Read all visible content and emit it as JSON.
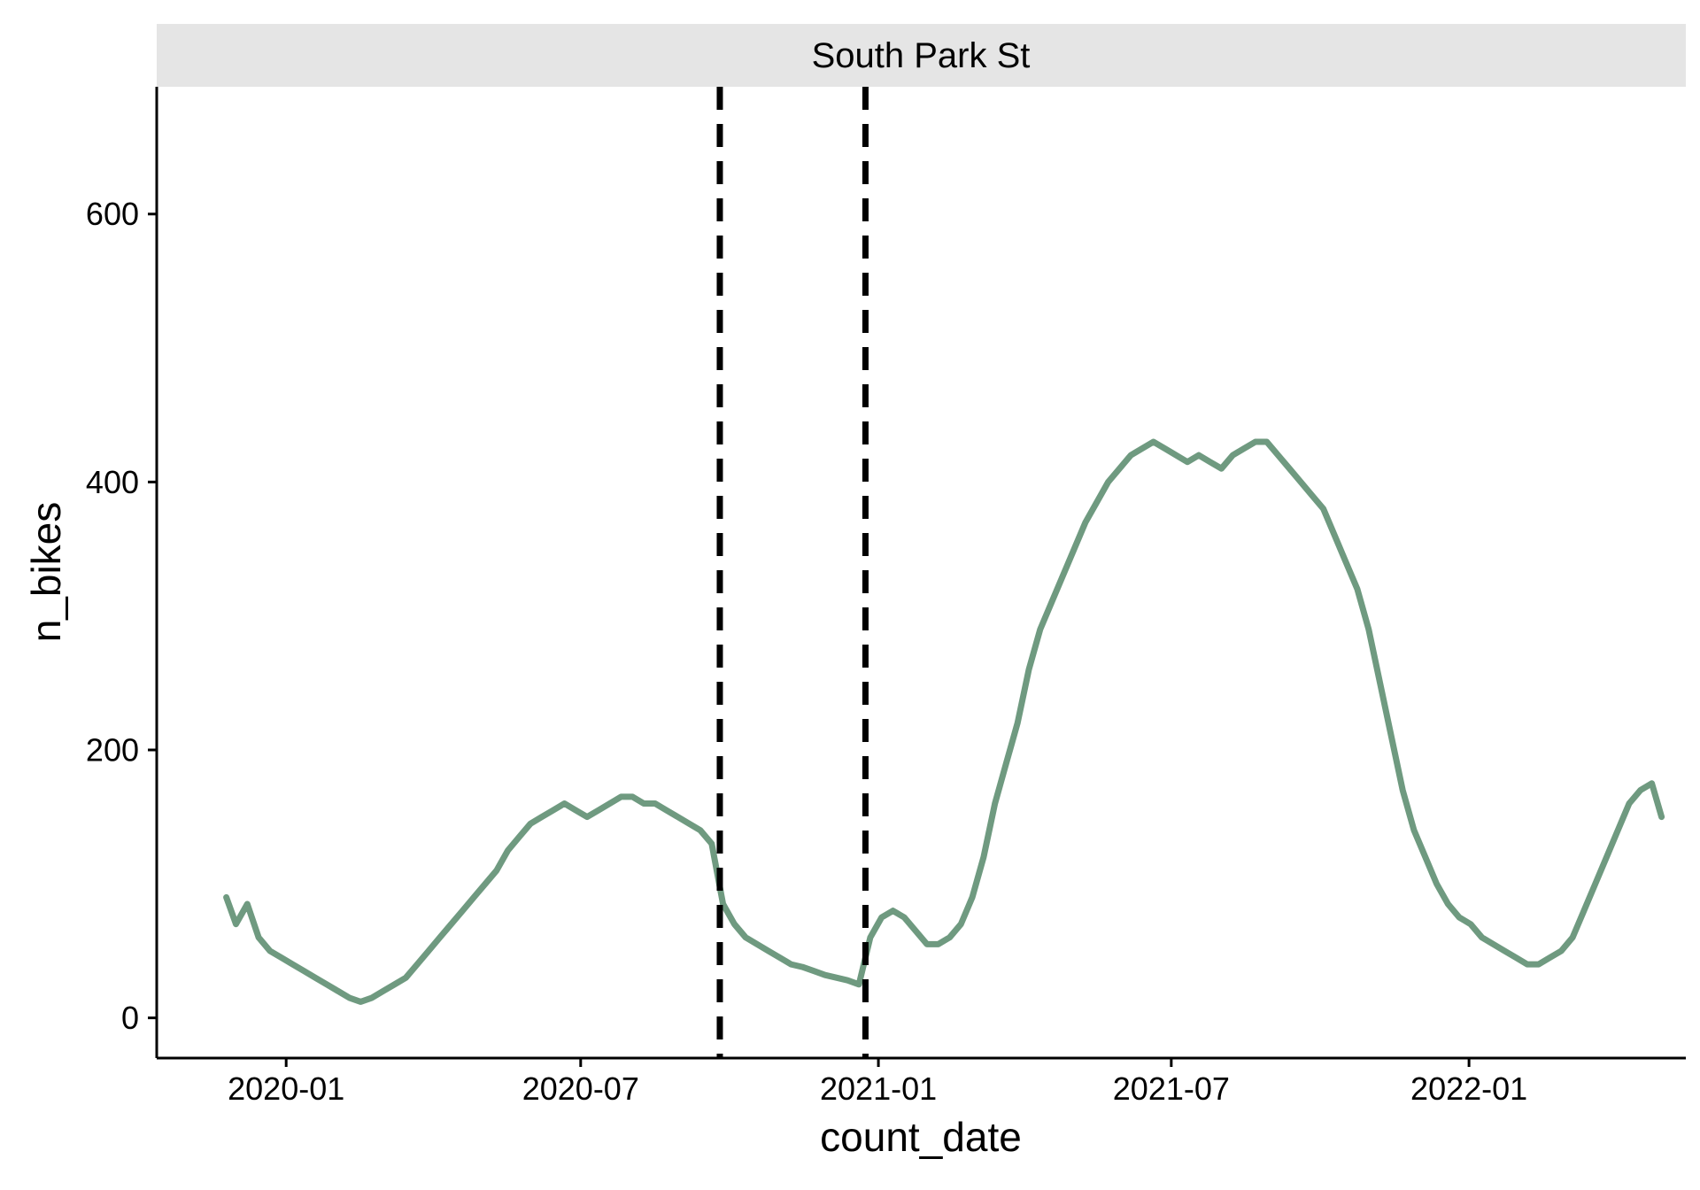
{
  "chart_data": {
    "type": "line",
    "facet": "South Park St",
    "xlabel": "count_date",
    "ylabel": "n_bikes",
    "x_ticks": [
      "2020-01",
      "2020-07",
      "2021-01",
      "2021-07",
      "2022-01"
    ],
    "y_ticks": [
      0,
      200,
      400,
      600
    ],
    "xlim": [
      "2019-10-13",
      "2022-05-15"
    ],
    "ylim": [
      -30,
      695
    ],
    "grid": false,
    "legend": "none",
    "line_color": "#6f9a80",
    "vlines": [
      "2020-09-25",
      "2020-12-24"
    ],
    "vline_style": "dashed",
    "vline_color": "#000000",
    "series": [
      {
        "x": [
          "2019-11-25",
          "2019-12-01",
          "2019-12-08",
          "2019-12-15",
          "2019-12-22",
          "2019-12-29",
          "2020-01-05",
          "2020-01-12",
          "2020-01-19",
          "2020-01-26",
          "2020-02-02",
          "2020-02-09",
          "2020-02-16",
          "2020-02-23",
          "2020-03-01",
          "2020-03-08",
          "2020-03-15",
          "2020-03-22",
          "2020-03-29",
          "2020-04-05",
          "2020-04-12",
          "2020-04-19",
          "2020-04-26",
          "2020-05-03",
          "2020-05-10",
          "2020-05-17",
          "2020-05-24",
          "2020-05-31",
          "2020-06-07",
          "2020-06-14",
          "2020-06-21",
          "2020-06-28",
          "2020-07-05",
          "2020-07-12",
          "2020-07-19",
          "2020-07-26",
          "2020-08-02",
          "2020-08-09",
          "2020-08-16",
          "2020-08-23",
          "2020-08-30",
          "2020-09-06",
          "2020-09-13",
          "2020-09-20",
          "2020-09-27",
          "2020-10-04",
          "2020-10-11",
          "2020-10-18",
          "2020-10-25",
          "2020-11-01",
          "2020-11-08",
          "2020-11-15",
          "2020-11-22",
          "2020-11-29",
          "2020-12-06",
          "2020-12-13",
          "2020-12-20",
          "2020-12-27",
          "2021-01-03",
          "2021-01-10",
          "2021-01-17",
          "2021-01-24",
          "2021-01-31",
          "2021-02-07",
          "2021-02-14",
          "2021-02-21",
          "2021-02-28",
          "2021-03-07",
          "2021-03-14",
          "2021-03-21",
          "2021-03-28",
          "2021-04-04",
          "2021-04-11",
          "2021-04-18",
          "2021-04-25",
          "2021-05-02",
          "2021-05-09",
          "2021-05-16",
          "2021-05-23",
          "2021-05-30",
          "2021-06-06",
          "2021-06-13",
          "2021-06-20",
          "2021-06-27",
          "2021-07-04",
          "2021-07-11",
          "2021-07-18",
          "2021-07-25",
          "2021-08-01",
          "2021-08-08",
          "2021-08-15",
          "2021-08-22",
          "2021-08-29",
          "2021-09-05",
          "2021-09-12",
          "2021-09-19",
          "2021-09-26",
          "2021-10-03",
          "2021-10-10",
          "2021-10-17",
          "2021-10-24",
          "2021-10-31",
          "2021-11-07",
          "2021-11-14",
          "2021-11-21",
          "2021-11-28",
          "2021-12-05",
          "2021-12-12",
          "2021-12-19",
          "2021-12-26",
          "2022-01-02",
          "2022-01-09",
          "2022-01-16",
          "2022-01-23",
          "2022-01-30",
          "2022-02-06",
          "2022-02-13",
          "2022-02-20",
          "2022-02-27",
          "2022-03-06",
          "2022-03-13",
          "2022-03-20",
          "2022-03-27",
          "2022-04-03",
          "2022-04-10",
          "2022-04-17",
          "2022-04-24",
          "2022-04-30"
        ],
        "y": [
          90,
          70,
          85,
          60,
          50,
          45,
          40,
          35,
          30,
          25,
          20,
          15,
          12,
          15,
          20,
          25,
          30,
          40,
          50,
          60,
          70,
          80,
          90,
          100,
          110,
          125,
          135,
          145,
          150,
          155,
          160,
          155,
          150,
          155,
          160,
          165,
          165,
          160,
          160,
          155,
          150,
          145,
          140,
          130,
          85,
          70,
          60,
          55,
          50,
          45,
          40,
          38,
          35,
          32,
          30,
          28,
          25,
          60,
          75,
          80,
          75,
          65,
          55,
          55,
          60,
          70,
          90,
          120,
          160,
          190,
          220,
          260,
          290,
          310,
          330,
          350,
          370,
          385,
          400,
          410,
          420,
          425,
          430,
          425,
          420,
          415,
          420,
          415,
          410,
          420,
          425,
          430,
          430,
          420,
          410,
          400,
          390,
          380,
          360,
          340,
          320,
          290,
          250,
          210,
          170,
          140,
          120,
          100,
          85,
          75,
          70,
          60,
          55,
          50,
          45,
          40,
          40,
          45,
          50,
          60,
          80,
          100,
          120,
          140,
          160,
          170,
          175,
          150
        ]
      }
    ]
  }
}
